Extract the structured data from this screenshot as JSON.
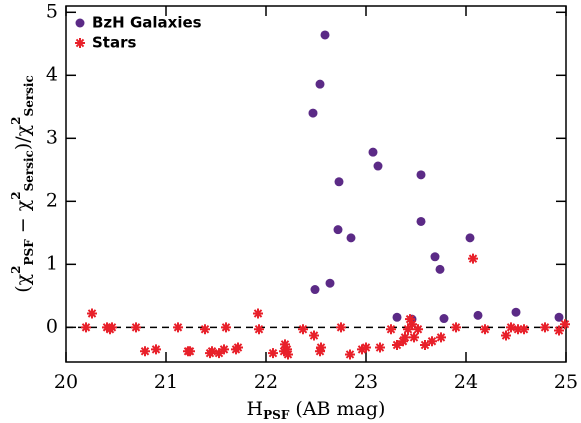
{
  "chart_data": {
    "type": "scatter",
    "x_label": [
      "H",
      "PSF",
      " (AB mag)"
    ],
    "y_label": [
      "(χ",
      "2",
      "PSF",
      " − χ",
      "2",
      "Sersic",
      ")/χ",
      "2",
      "Sersic"
    ],
    "xlim": [
      20,
      25
    ],
    "ylim": [
      -0.55,
      5.1
    ],
    "xticks": [
      20,
      21,
      22,
      23,
      24,
      25
    ],
    "yticks": [
      0,
      1,
      2,
      3,
      4,
      5
    ],
    "reference_line": 0,
    "legend": "upper left",
    "series": [
      {
        "name": "BzH Galaxies",
        "color": "#5b2a86",
        "marker": "circle",
        "x": [
          22.47,
          22.54,
          22.59,
          22.49,
          22.64,
          22.73,
          22.72,
          22.85,
          23.07,
          23.12,
          23.31,
          23.46,
          23.55,
          23.55,
          23.69,
          23.74,
          23.78,
          24.04,
          24.12,
          24.5,
          24.93
        ],
        "values": [
          3.4,
          3.86,
          4.64,
          0.6,
          0.7,
          2.31,
          1.55,
          1.42,
          2.78,
          2.56,
          0.16,
          0.13,
          2.42,
          1.68,
          1.12,
          0.92,
          0.14,
          1.42,
          0.19,
          0.24,
          0.16
        ]
      },
      {
        "name": "Stars",
        "color": "#e8202a",
        "marker": "asterisk",
        "x": [
          20.2,
          20.26,
          20.41,
          20.46,
          20.44,
          20.7,
          20.79,
          20.9,
          21.12,
          21.22,
          21.24,
          21.39,
          21.46,
          21.44,
          21.53,
          21.58,
          21.6,
          21.7,
          21.72,
          21.92,
          21.93,
          22.07,
          22.18,
          22.19,
          22.21,
          22.22,
          22.37,
          22.48,
          22.54,
          22.55,
          22.75,
          22.84,
          22.96,
          23.0,
          23.14,
          23.25,
          23.31,
          23.37,
          23.39,
          23.42,
          23.44,
          23.46,
          23.48,
          23.52,
          23.59,
          23.66,
          23.75,
          23.9,
          24.07,
          24.19,
          24.4,
          24.45,
          24.52,
          24.58,
          24.79,
          24.93,
          24.99
        ],
        "values": [
          0.0,
          0.22,
          0.0,
          0.0,
          -0.03,
          0.0,
          -0.38,
          -0.35,
          0.0,
          -0.38,
          -0.38,
          -0.03,
          -0.38,
          -0.41,
          -0.41,
          -0.35,
          0.0,
          -0.35,
          -0.32,
          0.22,
          -0.03,
          -0.41,
          -0.38,
          -0.27,
          -0.35,
          -0.43,
          -0.03,
          -0.13,
          -0.38,
          -0.32,
          0.0,
          -0.43,
          -0.35,
          -0.32,
          -0.32,
          -0.03,
          -0.28,
          -0.22,
          -0.16,
          -0.03,
          0.13,
          0.05,
          -0.16,
          -0.03,
          -0.28,
          -0.22,
          -0.16,
          0.0,
          1.09,
          -0.03,
          -0.13,
          0.0,
          -0.03,
          -0.03,
          0.0,
          -0.05,
          0.05
        ]
      }
    ]
  }
}
